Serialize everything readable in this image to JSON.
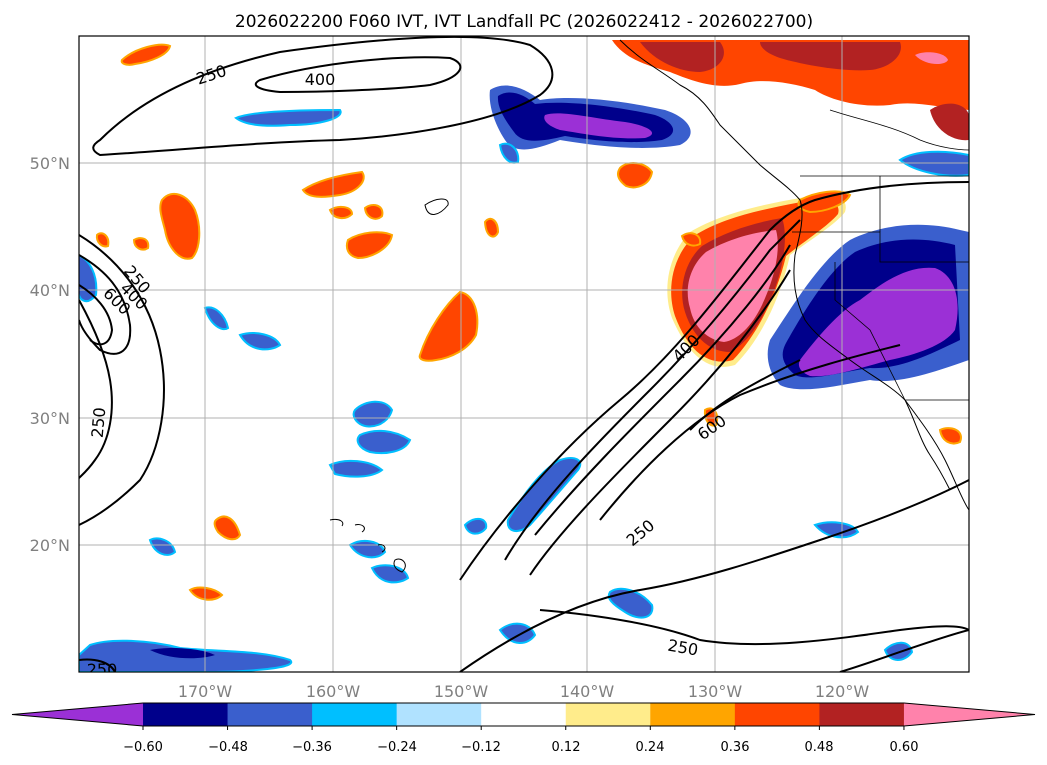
{
  "title": "2026022200 F060 IVT, IVT Landfall PC (2026022412 - 2026022700)",
  "map": {
    "lat_labels": [
      "50°N",
      "40°N",
      "30°N",
      "20°N"
    ],
    "lon_labels": [
      "170°W",
      "160°W",
      "150°W",
      "140°W",
      "130°W",
      "120°W"
    ],
    "contour_labels": [
      "250",
      "400",
      "250",
      "600",
      "400",
      "250",
      "400",
      "600",
      "250",
      "250",
      "250"
    ]
  },
  "colorbar": {
    "ticks": [
      "−0.60",
      "−0.48",
      "−0.36",
      "−0.24",
      "−0.12",
      "0.12",
      "0.24",
      "0.36",
      "0.48",
      "0.60"
    ],
    "colors": [
      "#9b30d6",
      "#00008b",
      "#3a5fcd",
      "#00bfff",
      "#b0e2ff",
      "#ffffff",
      "#ffec8b",
      "#ffa500",
      "#ff4500",
      "#b22222",
      "#ff82ab"
    ]
  }
}
